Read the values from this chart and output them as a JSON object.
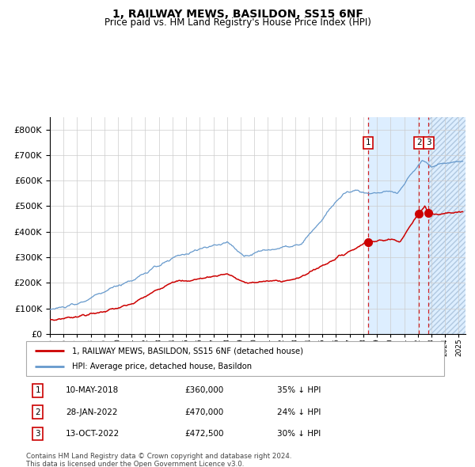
{
  "title": "1, RAILWAY MEWS, BASILDON, SS15 6NF",
  "subtitle": "Price paid vs. HM Land Registry's House Price Index (HPI)",
  "legend_label_red": "1, RAILWAY MEWS, BASILDON, SS15 6NF (detached house)",
  "legend_label_blue": "HPI: Average price, detached house, Basildon",
  "footer_line1": "Contains HM Land Registry data © Crown copyright and database right 2024.",
  "footer_line2": "This data is licensed under the Open Government Licence v3.0.",
  "transactions": [
    {
      "num": 1,
      "date": "10-MAY-2018",
      "price": 360000,
      "hpi_diff": "35% ↓ HPI",
      "x_year": 2018.36,
      "y_val": 360000
    },
    {
      "num": 2,
      "date": "28-JAN-2022",
      "price": 470000,
      "hpi_diff": "24% ↓ HPI",
      "x_year": 2022.08,
      "y_val": 470000
    },
    {
      "num": 3,
      "date": "13-OCT-2022",
      "price": 472500,
      "hpi_diff": "30% ↓ HPI",
      "x_year": 2022.79,
      "y_val": 472500
    }
  ],
  "red_line_color": "#cc0000",
  "blue_line_color": "#6699cc",
  "shade_color": "#ddeeff",
  "hatch_color": "#c8d8ee",
  "dashed_line_color": "#cc0000",
  "grid_color": "#cccccc",
  "background_color": "#ffffff",
  "ylim": [
    0,
    850000
  ],
  "xlim_start": 1995.0,
  "xlim_end": 2025.5,
  "shade_region_start": 2018.36,
  "hatch_region_start": 2022.79
}
